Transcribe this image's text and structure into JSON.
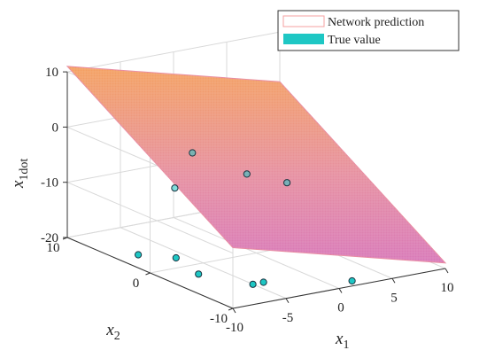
{
  "chart_data": {
    "type": "surface3d",
    "title": "",
    "axes": {
      "x": {
        "label": "x",
        "label_sub": "1",
        "range": [
          -10,
          10
        ],
        "ticks": [
          -10,
          -5,
          0,
          5,
          10
        ],
        "tick_labels": [
          "-10",
          "-5",
          "0",
          "5",
          "10"
        ]
      },
      "y": {
        "label": "x",
        "label_sub": "2",
        "range": [
          -10,
          10
        ],
        "ticks": [
          -10,
          0,
          10
        ],
        "tick_labels": [
          "-10",
          "0",
          "10"
        ]
      },
      "z": {
        "label": "x",
        "label_sub": "1dot",
        "range": [
          -20,
          10
        ],
        "ticks": [
          -20,
          -10,
          0,
          10
        ],
        "tick_labels": [
          "-20",
          "-10",
          "0",
          "10"
        ]
      }
    },
    "grid": true,
    "legend": {
      "placement": "top-right",
      "entries": [
        {
          "label": "Network prediction",
          "style": "surface-edge",
          "color": "#f4a0a0"
        },
        {
          "label": "True value",
          "style": "marker-fill",
          "color": "#1ec7c4"
        }
      ]
    },
    "surface": {
      "name": "Network prediction",
      "corner_values": [
        {
          "x1": -10,
          "x2": -10,
          "z": -9
        },
        {
          "x1": 10,
          "x2": -10,
          "z": -19
        },
        {
          "x1": 10,
          "x2": 10,
          "z": 1
        },
        {
          "x1": -10,
          "x2": 10,
          "z": 11
        }
      ],
      "colors": {
        "low": "#d878b8",
        "high": "#f4a060"
      }
    },
    "points": {
      "name": "True value",
      "color": "#1ec7c4",
      "values": [
        {
          "x1": -8,
          "x2": 4,
          "z": -20
        },
        {
          "x1": -6,
          "x2": 2,
          "z": -20
        },
        {
          "x1": -7,
          "x2": -2,
          "z": -20
        },
        {
          "x1": -5,
          "x2": -6,
          "z": -20
        },
        {
          "x1": -4,
          "x2": -6,
          "z": -20
        },
        {
          "x1": 2,
          "x2": -9,
          "z": -20
        },
        {
          "x1": -3,
          "x2": 6,
          "z": -11
        },
        {
          "x1": 1,
          "x2": 9,
          "z": -8
        },
        {
          "x1": 3,
          "x2": 5,
          "z": -10
        },
        {
          "x1": 6,
          "x2": 4,
          "z": -12
        }
      ]
    }
  }
}
